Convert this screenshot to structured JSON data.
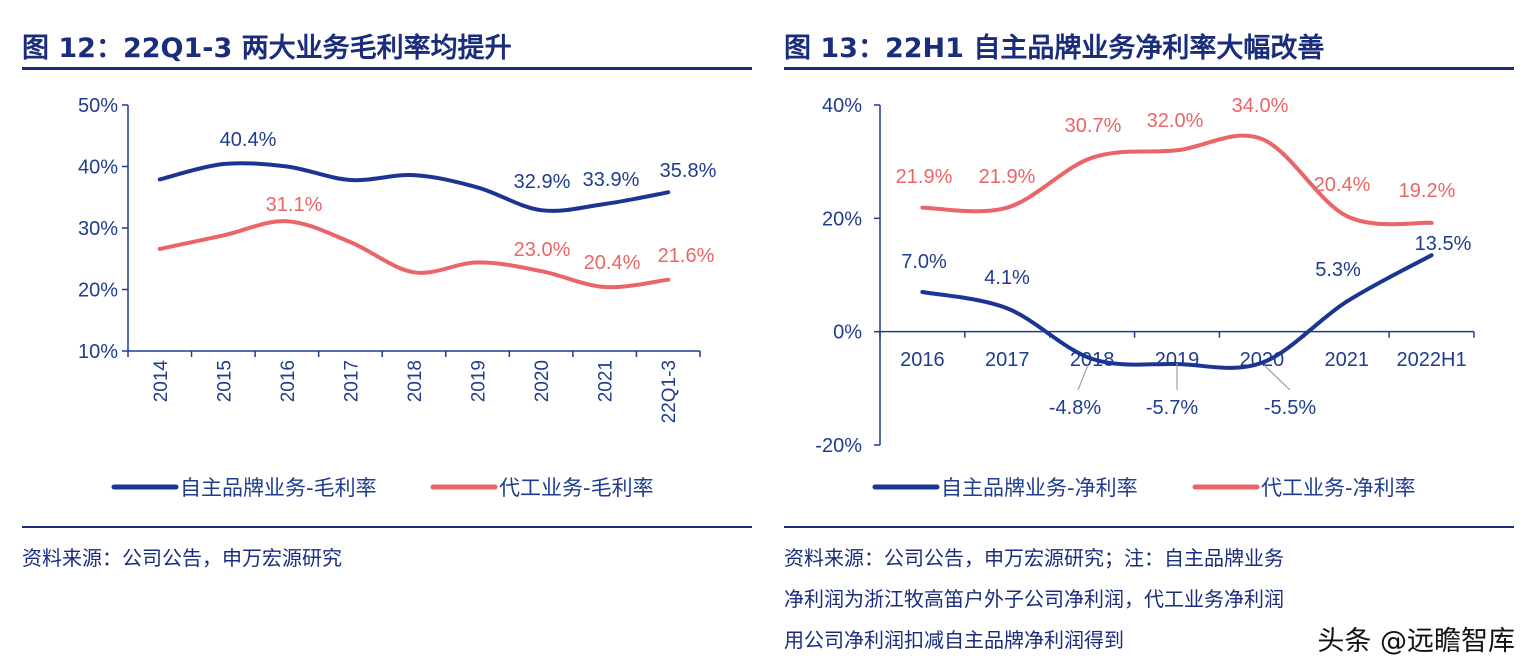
{
  "charts": [
    {
      "title": "图 12：22Q1-3 两大业务毛利率均提升",
      "source": "资料来源：公司公告，申万宏源研究"
    },
    {
      "title": "图 13：22H1 自主品牌业务净利率大幅改善",
      "source_lines": [
        "资料来源：公司公告，申万宏源研究；注：自主品牌业务",
        "净利润为浙江牧高笛户外子公司净利润，代工业务净利润",
        "用公司净利润扣减自主品牌净利润得到"
      ]
    }
  ],
  "watermark": "头条 @远瞻智库",
  "colors": {
    "title": "#1a2c7c",
    "brand": "#1b3593",
    "oem": "#eb6466"
  },
  "chart_data": [
    {
      "type": "line",
      "title": "图 12：22Q1-3 两大业务毛利率均提升",
      "categories": [
        "2014",
        "2015",
        "2016",
        "2017",
        "2018",
        "2019",
        "2020",
        "2021",
        "22Q1-3"
      ],
      "y_ticks": [
        "10%",
        "20%",
        "30%",
        "40%",
        "50%"
      ],
      "ylim": [
        10,
        50
      ],
      "series": [
        {
          "name": "自主品牌业务-毛利率",
          "color": "#1b3593",
          "values": [
            37.9,
            40.4,
            40.0,
            37.8,
            38.6,
            36.6,
            32.9,
            33.9,
            35.8
          ],
          "data_labels": [
            "",
            "40.4%",
            "",
            "",
            "",
            "",
            "32.9%",
            "33.9%",
            "35.8%"
          ]
        },
        {
          "name": "代工业务-毛利率",
          "color": "#eb6466",
          "values": [
            26.6,
            28.8,
            31.1,
            27.7,
            22.8,
            24.4,
            23.0,
            20.4,
            21.6
          ],
          "data_labels": [
            "",
            "",
            "31.1%",
            "",
            "",
            "",
            "23.0%",
            "20.4%",
            "21.6%"
          ]
        }
      ],
      "legend": "bottom"
    },
    {
      "type": "line",
      "title": "图 13：22H1 自主品牌业务净利率大幅改善",
      "categories": [
        "2016",
        "2017",
        "2018",
        "2019",
        "2020",
        "2021",
        "2022H1"
      ],
      "y_ticks": [
        "-20%",
        "0%",
        "20%",
        "40%"
      ],
      "ylim": [
        -20,
        40
      ],
      "series": [
        {
          "name": "自主品牌业务-净利率",
          "color": "#1b3593",
          "values": [
            7.0,
            4.1,
            -4.8,
            -5.7,
            -5.5,
            5.3,
            13.5
          ],
          "data_labels": [
            "7.0%",
            "4.1%",
            "-4.8%",
            "-5.7%",
            "-5.5%",
            "5.3%",
            "13.5%"
          ]
        },
        {
          "name": "代工业务-净利率",
          "color": "#eb6466",
          "values": [
            21.9,
            21.9,
            30.7,
            32.0,
            34.0,
            20.4,
            19.2
          ],
          "data_labels": [
            "21.9%",
            "21.9%",
            "30.7%",
            "32.0%",
            "34.0%",
            "20.4%",
            "19.2%"
          ]
        }
      ],
      "legend": "bottom"
    }
  ]
}
